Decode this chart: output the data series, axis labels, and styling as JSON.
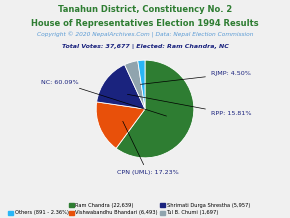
{
  "title_line1": "Tanahun District, Constituency No. 2",
  "title_line2": "House of Representatives Election 1994 Results",
  "copyright": "Copyright © 2020 NepalArchives.Com | Data: Nepal Election Commission",
  "total_votes": "Total Votes: 37,677 | Elected: Ram Chandra, NC",
  "slices": [
    {
      "label": "NC",
      "pct": 60.09,
      "color": "#2e7d32"
    },
    {
      "label": "CPN (UML)",
      "pct": 17.23,
      "color": "#e8500a"
    },
    {
      "label": "RPP",
      "pct": 15.81,
      "color": "#1a237e"
    },
    {
      "label": "RJMP",
      "pct": 4.5,
      "color": "#90a4ae"
    },
    {
      "label": "Others",
      "pct": 2.37,
      "color": "#29b6f6"
    }
  ],
  "legend_items": [
    {
      "label": "Ram Chandra (22,639)",
      "color": "#2e7d32"
    },
    {
      "label": "Vishwabandhu Bhandari (6,493)",
      "color": "#e8500a"
    },
    {
      "label": "Shrimati Durga Shrestha (5,957)",
      "color": "#1a237e"
    },
    {
      "label": "Tul B. Chumi (1,697)",
      "color": "#90a4ae"
    },
    {
      "label": "Others (891 - 2.36%)",
      "color": "#29b6f6"
    }
  ],
  "title_color": "#2e7d32",
  "copyright_color": "#5b9bd5",
  "total_color": "#1a237e",
  "label_color": "#1a237e",
  "bg_color": "#f0f0f0"
}
